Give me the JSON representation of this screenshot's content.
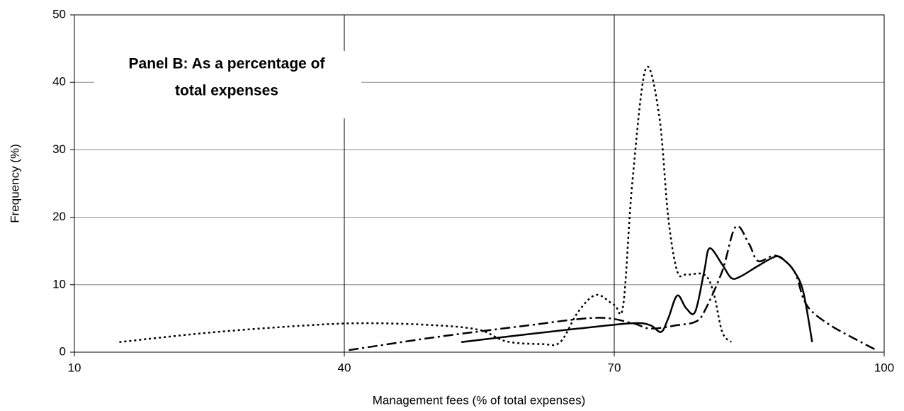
{
  "chart_data": {
    "type": "line",
    "annotation": [
      "Panel B:  As a percentage of",
      "total expenses"
    ],
    "x_label": "Management fees (% of total expenses)",
    "y_label": "Frequency (%)",
    "xlim": [
      10,
      100
    ],
    "xticks": [
      10,
      40,
      70,
      100
    ],
    "ylim": [
      0,
      50
    ],
    "yticks": [
      0,
      10,
      20,
      30,
      40,
      50
    ],
    "grid": true,
    "series": [
      {
        "color": "#000000",
        "dash": "dotted",
        "x": [
          15,
          25,
          35,
          42,
          50,
          55,
          58,
          62,
          64,
          66,
          68,
          70,
          71,
          72,
          73.5,
          75,
          76,
          77,
          78,
          80,
          81,
          82,
          83
        ],
        "values": [
          1.5,
          2.9,
          3.9,
          4.3,
          4.0,
          3.3,
          1.6,
          1.2,
          1.5,
          6,
          8.5,
          7,
          7,
          25,
          42,
          35,
          20,
          12,
          11.5,
          11.5,
          9,
          3,
          1.5
        ]
      },
      {
        "color": "#000000",
        "dash": "dashdot",
        "x": [
          40.5,
          50,
          60,
          68,
          72,
          74,
          77,
          79,
          80,
          82,
          83.5,
          85,
          86,
          88,
          90,
          91,
          92,
          94,
          96,
          99
        ],
        "values": [
          0.3,
          2.2,
          3.9,
          5.1,
          4.3,
          3.5,
          4,
          4.5,
          6,
          12,
          18.6,
          16,
          13.5,
          14.3,
          12,
          8,
          6,
          4,
          2.5,
          0.4
        ]
      },
      {
        "color": "#000000",
        "dash": "solid",
        "x": [
          53,
          60,
          66,
          72,
          74,
          75.2,
          76,
          77,
          78,
          79,
          80,
          80.6,
          82,
          83,
          84,
          86,
          88,
          89,
          90,
          91,
          92
        ],
        "values": [
          1.5,
          2.6,
          3.5,
          4.3,
          4.0,
          3,
          5,
          8.4,
          6.5,
          6,
          12,
          15.4,
          13,
          11,
          11.2,
          12.8,
          14.2,
          13.5,
          12,
          9,
          1.5
        ]
      }
    ]
  }
}
